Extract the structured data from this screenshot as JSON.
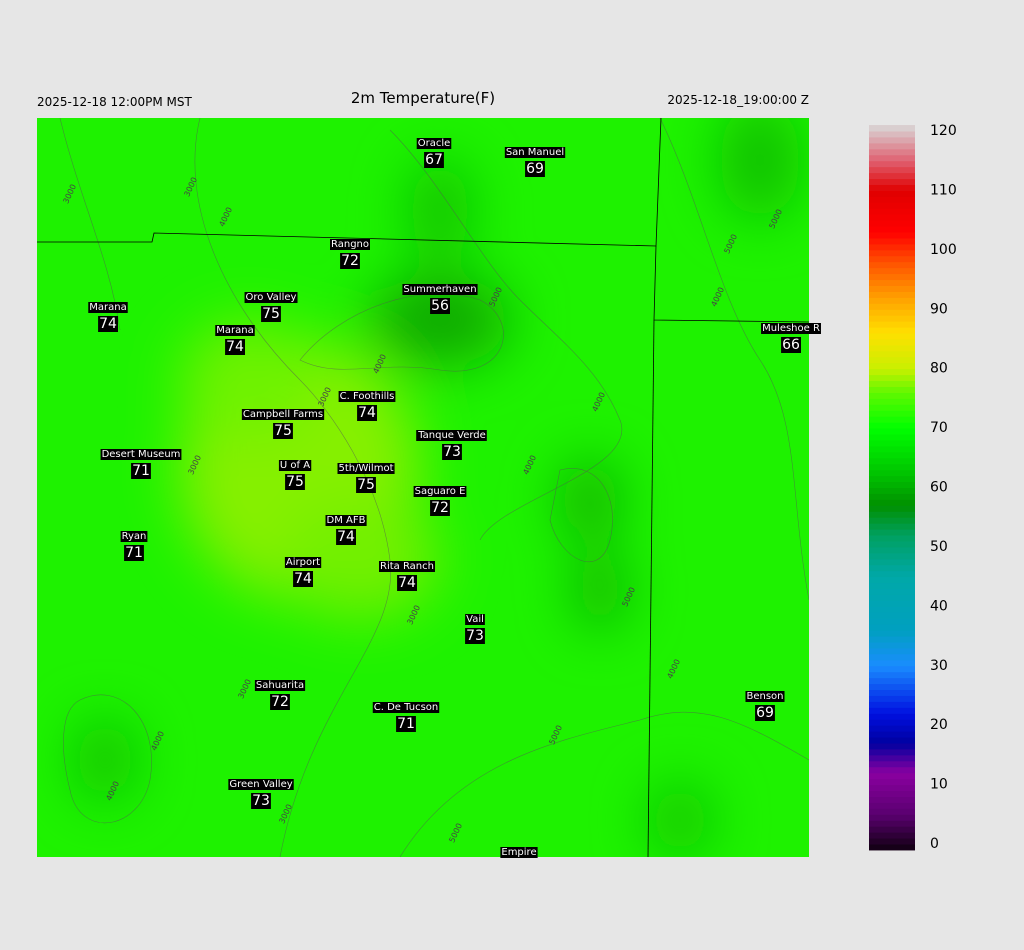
{
  "header": {
    "left": "2025-12-18 12:00PM MST",
    "title": "2m Temperature(F)",
    "right": "2025-12-18_19:00:00 Z"
  },
  "stations": [
    {
      "name": "Oracle",
      "value": 67
    },
    {
      "name": "San Manuel",
      "value": 69
    },
    {
      "name": "Rangno",
      "value": 72
    },
    {
      "name": "Marana",
      "value": 74
    },
    {
      "name": "Oro Valley",
      "value": 75
    },
    {
      "name": "Summerhaven",
      "value": 56
    },
    {
      "name": "Marana",
      "value": 74
    },
    {
      "name": "Muleshoe R",
      "value": 66
    },
    {
      "name": "C. Foothills",
      "value": 74
    },
    {
      "name": "Campbell Farms",
      "value": 75
    },
    {
      "name": "Tanque Verde",
      "value": 73
    },
    {
      "name": "Desert Museum",
      "value": 71
    },
    {
      "name": "U of A",
      "value": 75
    },
    {
      "name": "5th/Wilmot",
      "value": 75
    },
    {
      "name": "Saguaro E",
      "value": 72
    },
    {
      "name": "DM AFB",
      "value": 74
    },
    {
      "name": "Ryan",
      "value": 71
    },
    {
      "name": "Airport",
      "value": 74
    },
    {
      "name": "Rita Ranch",
      "value": 74
    },
    {
      "name": "Vail",
      "value": 73
    },
    {
      "name": "Sahuarita",
      "value": 72
    },
    {
      "name": "Benson",
      "value": 69
    },
    {
      "name": "C. De Tucson",
      "value": 71
    },
    {
      "name": "Green Valley",
      "value": 73
    },
    {
      "name": "Empire"
    }
  ],
  "contour_labels": [
    3000,
    3000,
    4000,
    3000,
    5000,
    4000,
    3000,
    4000,
    4000,
    3000,
    4000,
    5000,
    3000,
    4000,
    4000,
    5000,
    5000,
    5000,
    3000,
    4000,
    5000
  ],
  "colorbar": {
    "lim": [
      0,
      120
    ],
    "ticks": [
      0,
      10,
      20,
      30,
      40,
      50,
      60,
      70,
      80,
      90,
      100,
      110,
      120
    ]
  }
}
